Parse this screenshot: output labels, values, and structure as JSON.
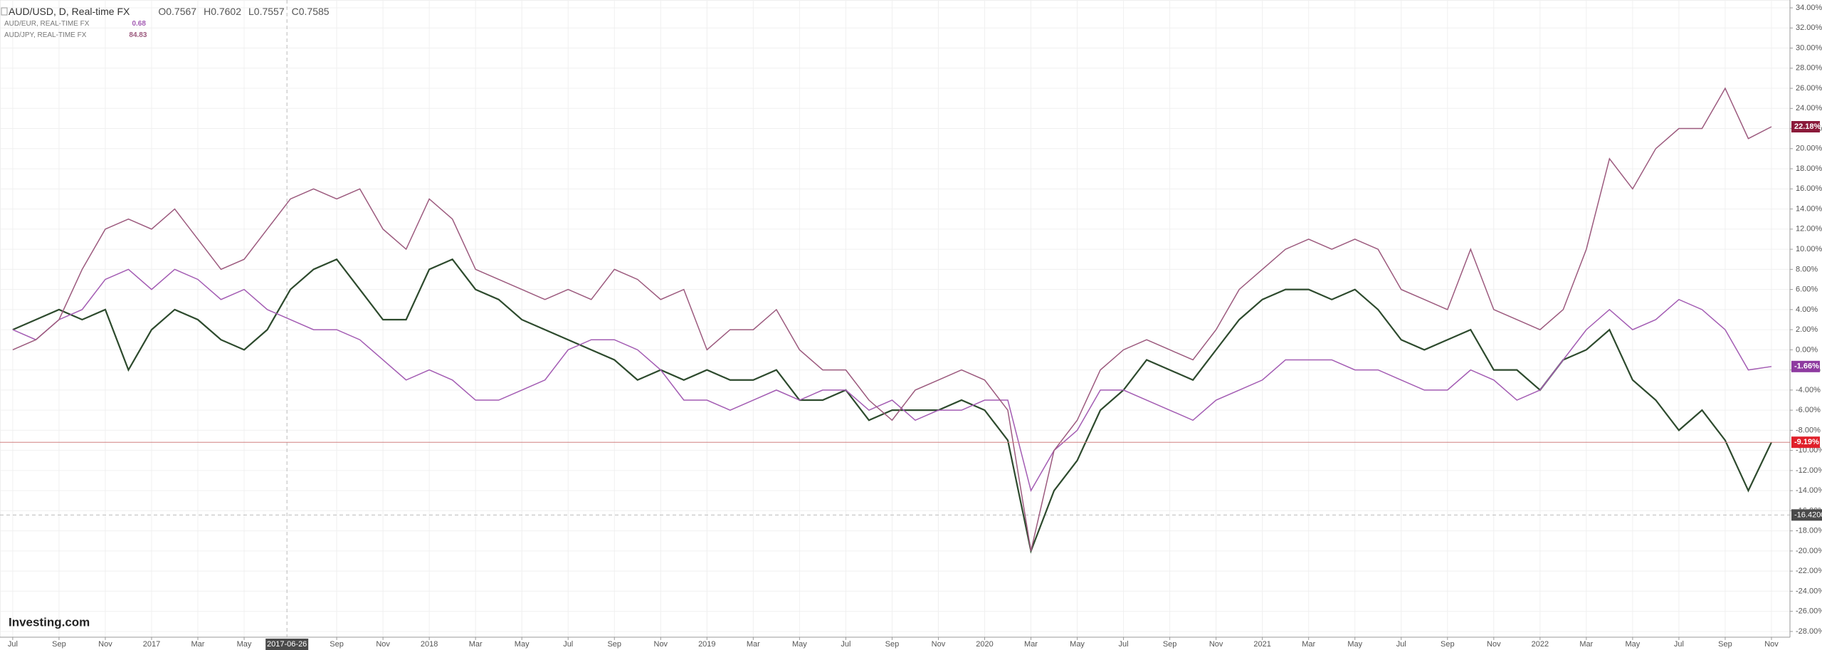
{
  "chart_data": {
    "type": "line",
    "brand": "Investing.com",
    "header": {
      "ohlc": [
        "O0.7567",
        "H0.7602",
        "L0.7557",
        "C0.7585"
      ]
    },
    "x": [
      0,
      1,
      2,
      3,
      4,
      5,
      6,
      7,
      8,
      9,
      10,
      11,
      12,
      13,
      14,
      15,
      16,
      17,
      18,
      19,
      20,
      21,
      22,
      23,
      24,
      25,
      26,
      27,
      28,
      29,
      30,
      31,
      32,
      33,
      34,
      35,
      36,
      37,
      38,
      39,
      40,
      41,
      42,
      43,
      44,
      45,
      46,
      47,
      48,
      49,
      50,
      51,
      52,
      53,
      54,
      55,
      56,
      57,
      58,
      59,
      60,
      61,
      62,
      63,
      64,
      65,
      66,
      67,
      68,
      69,
      70,
      71,
      72,
      73,
      74,
      75,
      76
    ],
    "series": [
      {
        "name": "AUD/USD, D, Real-time FX",
        "color": "#2d4a2d",
        "label_color": "#e0202a",
        "last_value_label": "-9.19%",
        "values": [
          2,
          3,
          4,
          3,
          4,
          -2,
          2,
          4,
          3,
          1,
          0,
          2,
          6,
          8,
          9,
          6,
          3,
          3,
          8,
          9,
          6,
          5,
          3,
          2,
          1,
          0,
          -1,
          -3,
          -2,
          -3,
          -2,
          -3,
          -3,
          -2,
          -5,
          -5,
          -4,
          -7,
          -6,
          -6,
          -6,
          -5,
          -6,
          -9,
          -20,
          -14,
          -11,
          -6,
          -4,
          -1,
          -2,
          -3,
          0,
          3,
          5,
          6,
          6,
          5,
          6,
          4,
          1,
          0,
          1,
          2,
          -2,
          -2,
          -4,
          -1,
          0,
          2,
          -3,
          -5,
          -8,
          -6,
          -9,
          -14,
          -9.19
        ]
      },
      {
        "name": "AUD/EUR, REAL-TIME FX",
        "legend_value": "0.68",
        "color": "#a35cb3",
        "label_color": "#8e3aa0",
        "last_value_label": "-1.66%",
        "values": [
          2,
          1,
          3,
          4,
          7,
          8,
          6,
          8,
          7,
          5,
          6,
          4,
          3,
          2,
          2,
          1,
          -1,
          -3,
          -2,
          -3,
          -5,
          -5,
          -4,
          -3,
          0,
          1,
          1,
          0,
          -2,
          -5,
          -5,
          -6,
          -5,
          -4,
          -5,
          -4,
          -4,
          -6,
          -5,
          -7,
          -6,
          -6,
          -5,
          -5,
          -14,
          -10,
          -8,
          -4,
          -4,
          -5,
          -6,
          -7,
          -5,
          -4,
          -3,
          -1,
          -1,
          -1,
          -2,
          -2,
          -3,
          -4,
          -4,
          -2,
          -3,
          -5,
          -4,
          -1,
          2,
          4,
          2,
          3,
          5,
          4,
          2,
          -2,
          -1.66
        ]
      },
      {
        "name": "AUD/JPY, REAL-TIME FX",
        "legend_value": "84.83",
        "color": "#9c5a7e",
        "label_color": "#8b1a3a",
        "last_value_label": "22.18%",
        "values": [
          0,
          1,
          3,
          8,
          12,
          13,
          12,
          14,
          11,
          8,
          9,
          12,
          15,
          16,
          15,
          16,
          12,
          10,
          15,
          13,
          8,
          7,
          6,
          5,
          6,
          5,
          8,
          7,
          5,
          6,
          0,
          2,
          2,
          4,
          0,
          -2,
          -2,
          -5,
          -7,
          -4,
          -3,
          -2,
          -3,
          -6,
          -20,
          -10,
          -7,
          -2,
          0,
          1,
          0,
          -1,
          2,
          6,
          8,
          10,
          11,
          10,
          11,
          10,
          6,
          5,
          4,
          10,
          4,
          3,
          2,
          4,
          10,
          19,
          16,
          20,
          22,
          22,
          26,
          21,
          22.18
        ]
      }
    ],
    "xlim": [
      -0.55,
      76.8
    ],
    "ylim": [
      -28.57,
      34.78
    ],
    "xticks": [
      {
        "value": 0,
        "label": "Jul"
      },
      {
        "value": 2,
        "label": "Sep"
      },
      {
        "value": 4,
        "label": "Nov"
      },
      {
        "value": 6,
        "label": "2017"
      },
      {
        "value": 8,
        "label": "Mar"
      },
      {
        "value": 10,
        "label": "May"
      },
      {
        "value": 14,
        "label": "Sep"
      },
      {
        "value": 16,
        "label": "Nov"
      },
      {
        "value": 18,
        "label": "2018"
      },
      {
        "value": 20,
        "label": "Mar"
      },
      {
        "value": 22,
        "label": "May"
      },
      {
        "value": 24,
        "label": "Jul"
      },
      {
        "value": 26,
        "label": "Sep"
      },
      {
        "value": 28,
        "label": "Nov"
      },
      {
        "value": 30,
        "label": "2019"
      },
      {
        "value": 32,
        "label": "Mar"
      },
      {
        "value": 34,
        "label": "May"
      },
      {
        "value": 36,
        "label": "Jul"
      },
      {
        "value": 38,
        "label": "Sep"
      },
      {
        "value": 40,
        "label": "Nov"
      },
      {
        "value": 42,
        "label": "2020"
      },
      {
        "value": 44,
        "label": "Mar"
      },
      {
        "value": 46,
        "label": "May"
      },
      {
        "value": 48,
        "label": "Jul"
      },
      {
        "value": 50,
        "label": "Sep"
      },
      {
        "value": 52,
        "label": "Nov"
      },
      {
        "value": 54,
        "label": "2021"
      },
      {
        "value": 56,
        "label": "Mar"
      },
      {
        "value": 58,
        "label": "May"
      },
      {
        "value": 60,
        "label": "Jul"
      },
      {
        "value": 62,
        "label": "Sep"
      },
      {
        "value": 64,
        "label": "Nov"
      },
      {
        "value": 66,
        "label": "2022"
      },
      {
        "value": 68,
        "label": "Mar"
      },
      {
        "value": 70,
        "label": "May"
      },
      {
        "value": 72,
        "label": "Jul"
      },
      {
        "value": 74,
        "label": "Sep"
      },
      {
        "value": 76,
        "label": "Nov"
      }
    ],
    "yticks": [
      {
        "value": 34,
        "label": "34.00%"
      },
      {
        "value": 32,
        "label": "32.00%"
      },
      {
        "value": 30,
        "label": "30.00%"
      },
      {
        "value": 28,
        "label": "28.00%"
      },
      {
        "value": 26,
        "label": "26.00%"
      },
      {
        "value": 24,
        "label": "24.00%"
      },
      {
        "value": 22,
        "label": "22.00%"
      },
      {
        "value": 20,
        "label": "20.00%"
      },
      {
        "value": 18,
        "label": "18.00%"
      },
      {
        "value": 16,
        "label": "16.00%"
      },
      {
        "value": 14,
        "label": "14.00%"
      },
      {
        "value": 12,
        "label": "12.00%"
      },
      {
        "value": 10,
        "label": "10.00%"
      },
      {
        "value": 8,
        "label": "8.00%"
      },
      {
        "value": 6,
        "label": "6.00%"
      },
      {
        "value": 4,
        "label": "4.00%"
      },
      {
        "value": 2,
        "label": "2.00%"
      },
      {
        "value": 0,
        "label": "0.00%"
      },
      {
        "value": -2,
        "label": "-2.00%"
      },
      {
        "value": -4,
        "label": "-4.00%"
      },
      {
        "value": -6,
        "label": "-6.00%"
      },
      {
        "value": -8,
        "label": "-8.00%"
      },
      {
        "value": -10,
        "label": "-10.00%"
      },
      {
        "value": -12,
        "label": "-12.00%"
      },
      {
        "value": -14,
        "label": "-14.00%"
      },
      {
        "value": -16,
        "label": "-16.00%"
      },
      {
        "value": -18,
        "label": "-18.00%"
      },
      {
        "value": -20,
        "label": "-20.00%"
      },
      {
        "value": -22,
        "label": "-22.00%"
      },
      {
        "value": -24,
        "label": "-24.00%"
      },
      {
        "value": -26,
        "label": "-26.00%"
      },
      {
        "value": -28,
        "label": "-28.00%"
      }
    ],
    "grid": true,
    "crosshair": {
      "x": {
        "value": 11.85,
        "label": "2017-06-26"
      },
      "y": {
        "value": -16.42,
        "label": "-16.4200"
      }
    }
  }
}
